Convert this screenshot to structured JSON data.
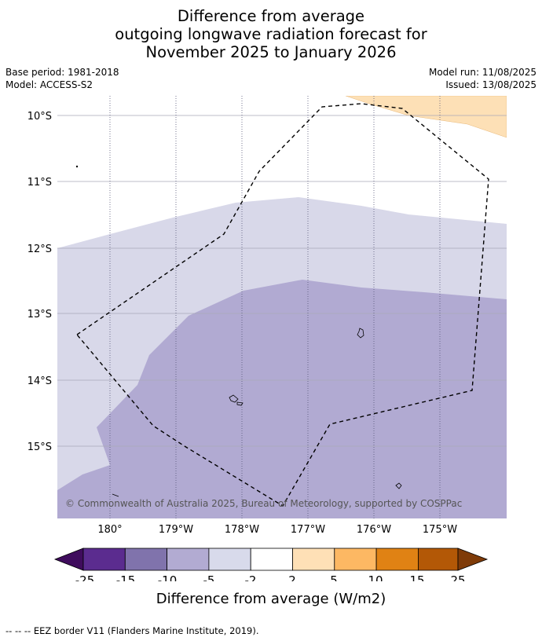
{
  "title": {
    "line1": "Difference from average",
    "line2": "outgoing longwave radiation forecast for",
    "line3": "November 2025 to January 2026"
  },
  "meta": {
    "base_period": "Base period: 1981-2018",
    "model": "Model: ACCESS-S2",
    "model_run": "Model run: 11/08/2025",
    "issued": "Issued: 13/08/2025"
  },
  "map": {
    "lat_labels": [
      "10°S",
      "11°S",
      "12°S",
      "13°S",
      "14°S",
      "15°S"
    ],
    "lon_labels": [
      "180°",
      "179°W",
      "178°W",
      "177°W",
      "176°W",
      "175°W"
    ],
    "copyright": "© Commonwealth of Australia 2025, Bureau of Meteorology, supported by COSPPac",
    "colors": {
      "band_m5_m2": "#d8d8e9",
      "band_m10_m5": "#b1aad2",
      "band_2_5": "#fde0b6",
      "grid": "#a8a8b8",
      "eez_border": "#000000"
    }
  },
  "colorbar": {
    "ticks": [
      "-25",
      "-15",
      "-10",
      "-5",
      "-2",
      "2",
      "5",
      "10",
      "15",
      "25"
    ],
    "colors": [
      "#3f0c5d",
      "#5b2c8f",
      "#8073ac",
      "#b2abd2",
      "#d8daeb",
      "#ffffff",
      "#fee0b6",
      "#fdb863",
      "#e08214",
      "#b35806",
      "#7f3b08"
    ],
    "label": "Difference from average (W/m2)"
  },
  "legend": {
    "eez": "--  --  -- EEZ border V11 (Flanders Marine Institute, 2019)."
  }
}
